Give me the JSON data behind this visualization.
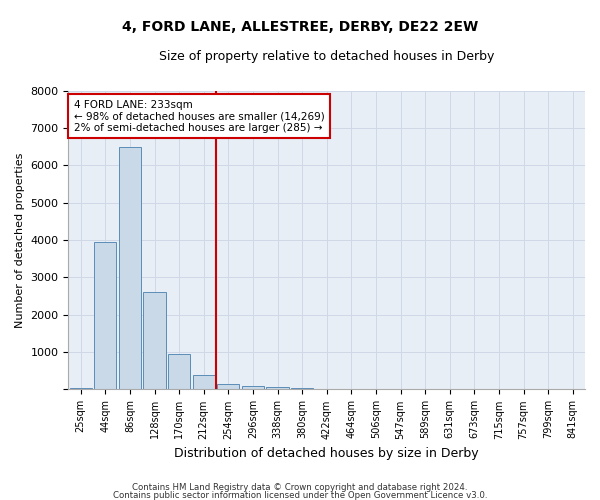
{
  "title1": "4, FORD LANE, ALLESTREE, DERBY, DE22 2EW",
  "title2": "Size of property relative to detached houses in Derby",
  "xlabel": "Distribution of detached houses by size in Derby",
  "ylabel": "Number of detached properties",
  "bar_color": "#c9d9e8",
  "bar_edge_color": "#5b8db8",
  "categories": [
    "25sqm",
    "44sqm",
    "86sqm",
    "128sqm",
    "170sqm",
    "212sqm",
    "254sqm",
    "296sqm",
    "338sqm",
    "380sqm",
    "422sqm",
    "464sqm",
    "506sqm",
    "547sqm",
    "589sqm",
    "631sqm",
    "673sqm",
    "715sqm",
    "757sqm",
    "799sqm",
    "841sqm"
  ],
  "values": [
    50,
    3950,
    6500,
    2600,
    950,
    400,
    150,
    100,
    75,
    50,
    10,
    0,
    0,
    0,
    0,
    0,
    0,
    0,
    0,
    0,
    0
  ],
  "vline_color": "#cc0000",
  "annotation_text": "4 FORD LANE: 233sqm\n← 98% of detached houses are smaller (14,269)\n2% of semi-detached houses are larger (285) →",
  "annotation_box_color": "#ffffff",
  "annotation_box_edge": "#cc0000",
  "ylim": [
    0,
    8000
  ],
  "yticks": [
    0,
    1000,
    2000,
    3000,
    4000,
    5000,
    6000,
    7000,
    8000
  ],
  "grid_color": "#d0d8e8",
  "footnote1": "Contains HM Land Registry data © Crown copyright and database right 2024.",
  "footnote2": "Contains public sector information licensed under the Open Government Licence v3.0.",
  "bg_color": "#e8eef5"
}
